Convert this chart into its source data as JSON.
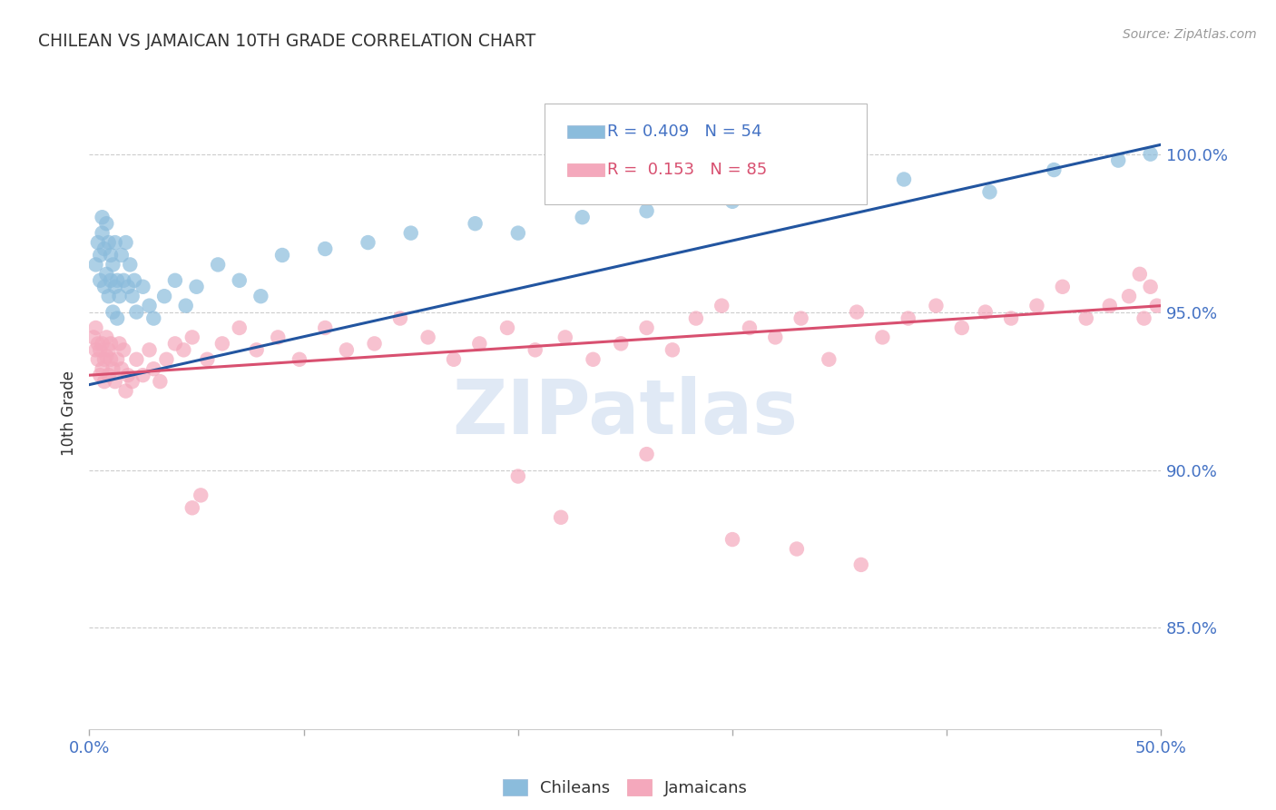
{
  "title": "CHILEAN VS JAMAICAN 10TH GRADE CORRELATION CHART",
  "source": "Source: ZipAtlas.com",
  "ylabel": "10th Grade",
  "ylabel_ticks": [
    "85.0%",
    "90.0%",
    "95.0%",
    "100.0%"
  ],
  "ylabel_values": [
    0.85,
    0.9,
    0.95,
    1.0
  ],
  "xmin": 0.0,
  "xmax": 0.5,
  "ymin": 0.818,
  "ymax": 1.018,
  "legend_line1": "R = 0.409   N = 54",
  "legend_line2": "R =  0.153   N = 85",
  "color_blue": "#8bbcdc",
  "color_pink": "#f4a8bc",
  "color_blue_line": "#2255a0",
  "color_pink_line": "#d85070",
  "watermark": "ZIPatlas",
  "blue_line_x": [
    0.0,
    0.5
  ],
  "blue_line_y": [
    0.927,
    1.003
  ],
  "pink_line_x": [
    0.0,
    0.5
  ],
  "pink_line_y": [
    0.93,
    0.952
  ],
  "chileans_x": [
    0.003,
    0.004,
    0.005,
    0.005,
    0.006,
    0.006,
    0.007,
    0.007,
    0.008,
    0.008,
    0.009,
    0.009,
    0.01,
    0.01,
    0.011,
    0.011,
    0.012,
    0.012,
    0.013,
    0.013,
    0.014,
    0.015,
    0.016,
    0.017,
    0.018,
    0.019,
    0.02,
    0.021,
    0.022,
    0.025,
    0.028,
    0.03,
    0.035,
    0.04,
    0.045,
    0.05,
    0.06,
    0.07,
    0.08,
    0.09,
    0.11,
    0.13,
    0.15,
    0.18,
    0.2,
    0.23,
    0.26,
    0.3,
    0.34,
    0.38,
    0.42,
    0.45,
    0.48,
    0.495
  ],
  "chileans_y": [
    0.965,
    0.972,
    0.96,
    0.968,
    0.975,
    0.98,
    0.958,
    0.97,
    0.962,
    0.978,
    0.955,
    0.972,
    0.96,
    0.968,
    0.95,
    0.965,
    0.958,
    0.972,
    0.96,
    0.948,
    0.955,
    0.968,
    0.96,
    0.972,
    0.958,
    0.965,
    0.955,
    0.96,
    0.95,
    0.958,
    0.952,
    0.948,
    0.955,
    0.96,
    0.952,
    0.958,
    0.965,
    0.96,
    0.955,
    0.968,
    0.97,
    0.972,
    0.975,
    0.978,
    0.975,
    0.98,
    0.982,
    0.985,
    0.99,
    0.992,
    0.988,
    0.995,
    0.998,
    1.0
  ],
  "jamaicans_x": [
    0.002,
    0.003,
    0.003,
    0.004,
    0.004,
    0.005,
    0.005,
    0.006,
    0.006,
    0.007,
    0.007,
    0.008,
    0.008,
    0.009,
    0.009,
    0.01,
    0.01,
    0.011,
    0.012,
    0.013,
    0.014,
    0.015,
    0.016,
    0.017,
    0.018,
    0.02,
    0.022,
    0.025,
    0.028,
    0.03,
    0.033,
    0.036,
    0.04,
    0.044,
    0.048,
    0.055,
    0.062,
    0.07,
    0.078,
    0.088,
    0.098,
    0.11,
    0.12,
    0.133,
    0.145,
    0.158,
    0.17,
    0.182,
    0.195,
    0.208,
    0.222,
    0.235,
    0.248,
    0.26,
    0.272,
    0.283,
    0.295,
    0.308,
    0.32,
    0.332,
    0.345,
    0.358,
    0.37,
    0.382,
    0.395,
    0.407,
    0.418,
    0.43,
    0.442,
    0.454,
    0.465,
    0.476,
    0.485,
    0.492,
    0.498,
    0.048,
    0.052,
    0.2,
    0.22,
    0.26,
    0.3,
    0.33,
    0.36,
    0.49,
    0.495
  ],
  "jamaicans_y": [
    0.942,
    0.938,
    0.945,
    0.935,
    0.94,
    0.93,
    0.938,
    0.932,
    0.94,
    0.935,
    0.928,
    0.942,
    0.936,
    0.93,
    0.938,
    0.935,
    0.94,
    0.932,
    0.928,
    0.935,
    0.94,
    0.932,
    0.938,
    0.925,
    0.93,
    0.928,
    0.935,
    0.93,
    0.938,
    0.932,
    0.928,
    0.935,
    0.94,
    0.938,
    0.942,
    0.935,
    0.94,
    0.945,
    0.938,
    0.942,
    0.935,
    0.945,
    0.938,
    0.94,
    0.948,
    0.942,
    0.935,
    0.94,
    0.945,
    0.938,
    0.942,
    0.935,
    0.94,
    0.945,
    0.938,
    0.948,
    0.952,
    0.945,
    0.942,
    0.948,
    0.935,
    0.95,
    0.942,
    0.948,
    0.952,
    0.945,
    0.95,
    0.948,
    0.952,
    0.958,
    0.948,
    0.952,
    0.955,
    0.948,
    0.952,
    0.888,
    0.892,
    0.898,
    0.885,
    0.905,
    0.878,
    0.875,
    0.87,
    0.962,
    0.958
  ]
}
